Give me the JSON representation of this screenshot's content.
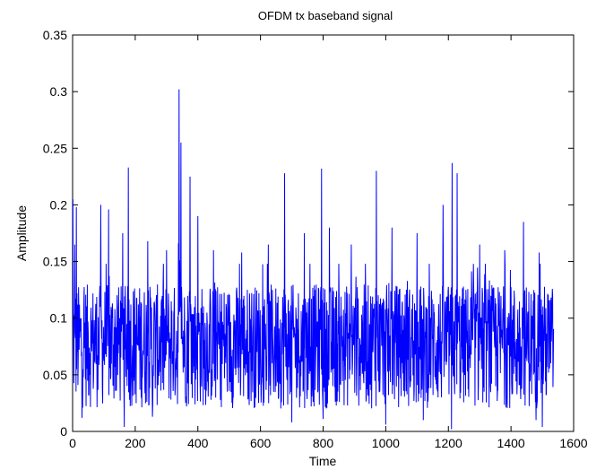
{
  "chart_data": {
    "type": "line",
    "title": "OFDM tx baseband signal",
    "xlabel": "Time",
    "ylabel": "Amplitude",
    "xlim": [
      0,
      1600
    ],
    "ylim": [
      0,
      0.35
    ],
    "xticks": [
      0,
      200,
      400,
      600,
      800,
      1000,
      1200,
      1400,
      1600
    ],
    "yticks": [
      0,
      0.05,
      0.1,
      0.15,
      0.2,
      0.25,
      0.3,
      0.35
    ],
    "grid": false,
    "series": [
      {
        "color": "#0000ff",
        "x_start": 1,
        "x_step": 1,
        "length": 1536,
        "peaks": [
          {
            "x": 0,
            "y": 0.205
          },
          {
            "x": 7,
            "y": 0.165
          },
          {
            "x": 12,
            "y": 0.198
          },
          {
            "x": 90,
            "y": 0.2
          },
          {
            "x": 115,
            "y": 0.196
          },
          {
            "x": 160,
            "y": 0.175
          },
          {
            "x": 178,
            "y": 0.233
          },
          {
            "x": 240,
            "y": 0.168
          },
          {
            "x": 300,
            "y": 0.16
          },
          {
            "x": 340,
            "y": 0.302
          },
          {
            "x": 346,
            "y": 0.255
          },
          {
            "x": 375,
            "y": 0.225
          },
          {
            "x": 400,
            "y": 0.19
          },
          {
            "x": 450,
            "y": 0.16
          },
          {
            "x": 540,
            "y": 0.158
          },
          {
            "x": 625,
            "y": 0.165
          },
          {
            "x": 677,
            "y": 0.228
          },
          {
            "x": 740,
            "y": 0.175
          },
          {
            "x": 795,
            "y": 0.232
          },
          {
            "x": 820,
            "y": 0.18
          },
          {
            "x": 890,
            "y": 0.165
          },
          {
            "x": 970,
            "y": 0.23
          },
          {
            "x": 1020,
            "y": 0.18
          },
          {
            "x": 1100,
            "y": 0.175
          },
          {
            "x": 1183,
            "y": 0.2
          },
          {
            "x": 1212,
            "y": 0.237
          },
          {
            "x": 1228,
            "y": 0.228
          },
          {
            "x": 1300,
            "y": 0.165
          },
          {
            "x": 1380,
            "y": 0.16
          },
          {
            "x": 1440,
            "y": 0.185
          },
          {
            "x": 1490,
            "y": 0.158
          },
          {
            "x": 1530,
            "y": 0.093
          }
        ],
        "troughs": [
          {
            "x": 30,
            "y": 0.012
          },
          {
            "x": 165,
            "y": 0.004
          },
          {
            "x": 255,
            "y": 0.013
          },
          {
            "x": 700,
            "y": 0.008
          },
          {
            "x": 800,
            "y": 0.011
          },
          {
            "x": 1000,
            "y": 0.006
          },
          {
            "x": 1120,
            "y": 0.01
          },
          {
            "x": 1210,
            "y": 0.002
          },
          {
            "x": 1480,
            "y": 0.01
          },
          {
            "x": 1500,
            "y": 0.004
          }
        ]
      }
    ]
  }
}
